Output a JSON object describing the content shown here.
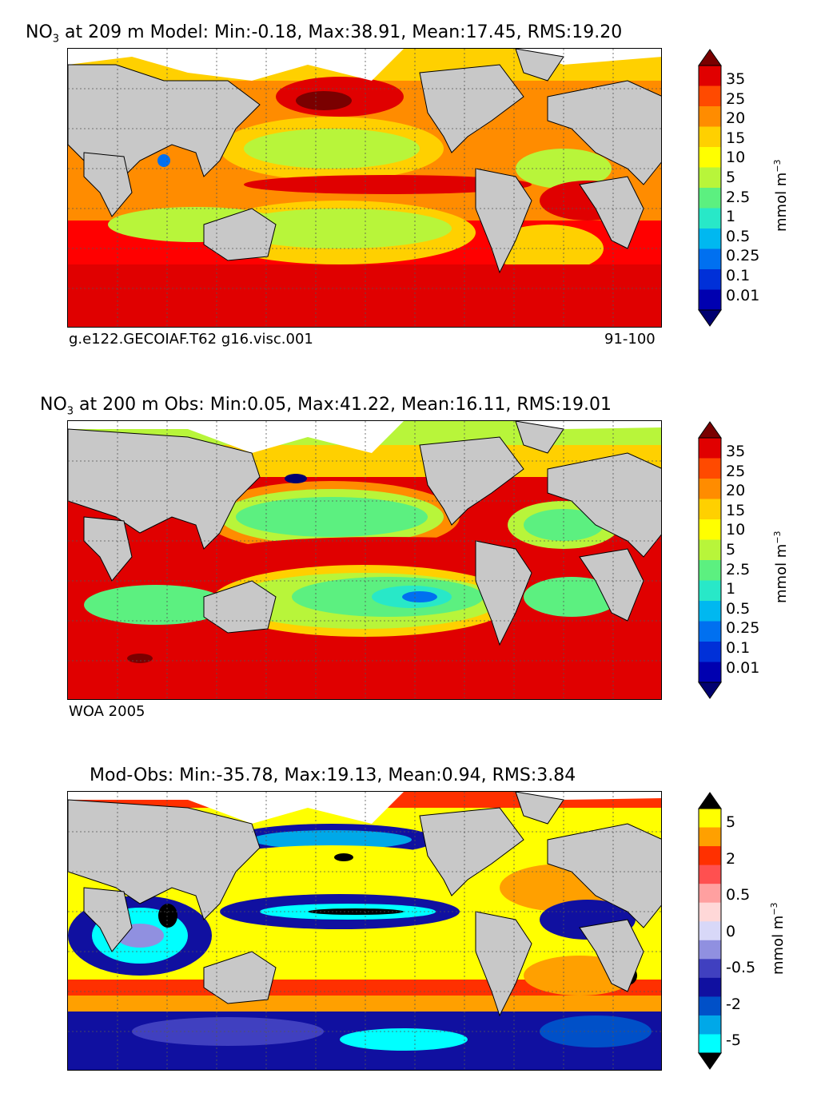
{
  "panels": [
    {
      "title_prefix": "NO",
      "title_sub": "3",
      "title_rest": " at 209 m Model: Min:-0.18, Max:38.91, Mean:17.45, RMS:19.20",
      "caption_left": "g.e122.GECOIAF.T62 g16.visc.001",
      "caption_right": "91-100"
    },
    {
      "title_prefix": "NO",
      "title_sub": "3",
      "title_rest": " at 200 m Obs: Min:0.05, Max:41.22, Mean:16.11, RMS:19.01",
      "caption_left": "WOA 2005",
      "caption_right": ""
    },
    {
      "title_prefix": "",
      "title_sub": "",
      "title_rest": "Mod-Obs: Min:-35.78, Max:19.13, Mean:0.94, RMS:3.84",
      "caption_left": "",
      "caption_right": ""
    }
  ],
  "colorbar_top": {
    "labels": [
      "35",
      "25",
      "20",
      "15",
      "10",
      "5",
      "2.5",
      "1",
      "0.5",
      "0.25",
      "0.1",
      "0.01"
    ],
    "colors": [
      "#7a0000",
      "#e00000",
      "#ff4a00",
      "#ff8c00",
      "#ffd000",
      "#ffff00",
      "#b8f53a",
      "#5cf080",
      "#28e8c8",
      "#00b8f0",
      "#0070f0",
      "#0030d8",
      "#0000b0",
      "#000070"
    ],
    "units_main": "mmol m",
    "units_sup": "−3"
  },
  "colorbar_diff": {
    "labels": [
      "5",
      "2",
      "0.5",
      "0",
      "-0.5",
      "-2",
      "-5"
    ],
    "colors": [
      "#000000",
      "#ffff00",
      "#ffa000",
      "#ff3000",
      "#ff5050",
      "#ffa0a0",
      "#ffd8d8",
      "#d8d8f8",
      "#9090e0",
      "#4040c0",
      "#1010a0",
      "#0050c8",
      "#00a8e8",
      "#00ffff",
      "#000000"
    ],
    "units_main": "mmol m",
    "units_sup": "−3"
  },
  "map_colors": {
    "land": "#c8c8c8",
    "coast": "#000000",
    "grid": "#555555"
  }
}
